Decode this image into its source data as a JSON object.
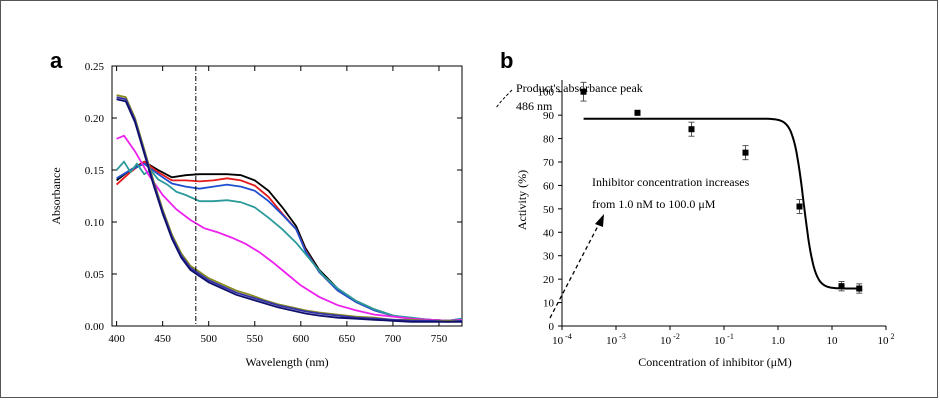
{
  "chart_data": [
    {
      "panel": "a",
      "type": "line",
      "xlabel": "Wavelength (nm)",
      "ylabel": "Absorbance",
      "xlim": [
        395,
        775
      ],
      "ylim": [
        0,
        0.25
      ],
      "xticks": [
        400,
        450,
        500,
        550,
        600,
        650,
        700,
        750
      ],
      "yticks": [
        "0.00",
        "0.05",
        "0.10",
        "0.15",
        "0.20",
        "0.25"
      ],
      "annotations": {
        "peak_line_x": 486,
        "peak_label_line1": "Product's absorbance peak",
        "peak_label_line2": "486 nm",
        "trend_label_line1": "Inhibitor concentration increases",
        "trend_label_line2": "from 1.0 nM to 100.0    μM"
      },
      "series": [
        {
          "color": "#000000",
          "points": [
            [
              400,
              0.14
            ],
            [
              415,
              0.15
            ],
            [
              430,
              0.158
            ],
            [
              445,
              0.15
            ],
            [
              460,
              0.143
            ],
            [
              475,
              0.145
            ],
            [
              490,
              0.146
            ],
            [
              505,
              0.146
            ],
            [
              520,
              0.146
            ],
            [
              535,
              0.145
            ],
            [
              550,
              0.14
            ],
            [
              565,
              0.13
            ],
            [
              580,
              0.114
            ],
            [
              595,
              0.096
            ],
            [
              605,
              0.075
            ],
            [
              620,
              0.054
            ],
            [
              640,
              0.036
            ],
            [
              660,
              0.024
            ],
            [
              680,
              0.016
            ],
            [
              700,
              0.01
            ],
            [
              720,
              0.007
            ],
            [
              740,
              0.006
            ],
            [
              760,
              0.005
            ],
            [
              775,
              0.006
            ]
          ]
        },
        {
          "color": "#e41a1c",
          "points": [
            [
              400,
              0.136
            ],
            [
              415,
              0.148
            ],
            [
              430,
              0.158
            ],
            [
              445,
              0.148
            ],
            [
              460,
              0.14
            ],
            [
              475,
              0.14
            ],
            [
              490,
              0.139
            ],
            [
              505,
              0.14
            ],
            [
              520,
              0.142
            ],
            [
              535,
              0.14
            ],
            [
              550,
              0.135
            ],
            [
              565,
              0.124
            ],
            [
              580,
              0.108
            ],
            [
              595,
              0.093
            ],
            [
              605,
              0.073
            ],
            [
              620,
              0.052
            ],
            [
              640,
              0.034
            ],
            [
              660,
              0.023
            ],
            [
              680,
              0.015
            ],
            [
              700,
              0.01
            ],
            [
              720,
              0.007
            ],
            [
              740,
              0.006
            ],
            [
              760,
              0.005
            ],
            [
              775,
              0.006
            ]
          ]
        },
        {
          "color": "#1f4fd1",
          "points": [
            [
              400,
              0.142
            ],
            [
              415,
              0.15
            ],
            [
              430,
              0.156
            ],
            [
              445,
              0.146
            ],
            [
              460,
              0.137
            ],
            [
              475,
              0.134
            ],
            [
              490,
              0.132
            ],
            [
              505,
              0.134
            ],
            [
              520,
              0.136
            ],
            [
              535,
              0.134
            ],
            [
              550,
              0.13
            ],
            [
              565,
              0.12
            ],
            [
              580,
              0.107
            ],
            [
              595,
              0.093
            ],
            [
              605,
              0.072
            ],
            [
              620,
              0.052
            ],
            [
              640,
              0.034
            ],
            [
              660,
              0.023
            ],
            [
              680,
              0.015
            ],
            [
              700,
              0.01
            ],
            [
              720,
              0.007
            ],
            [
              740,
              0.006
            ],
            [
              760,
              0.005
            ],
            [
              775,
              0.007
            ]
          ]
        },
        {
          "color": "#2a9a9a",
          "points": [
            [
              400,
              0.15
            ],
            [
              408,
              0.158
            ],
            [
              415,
              0.148
            ],
            [
              422,
              0.156
            ],
            [
              430,
              0.146
            ],
            [
              437,
              0.15
            ],
            [
              445,
              0.141
            ],
            [
              455,
              0.136
            ],
            [
              465,
              0.129
            ],
            [
              475,
              0.126
            ],
            [
              490,
              0.12
            ],
            [
              505,
              0.12
            ],
            [
              520,
              0.121
            ],
            [
              535,
              0.119
            ],
            [
              550,
              0.114
            ],
            [
              565,
              0.104
            ],
            [
              580,
              0.093
            ],
            [
              595,
              0.08
            ],
            [
              610,
              0.064
            ],
            [
              625,
              0.048
            ],
            [
              640,
              0.036
            ],
            [
              660,
              0.024
            ],
            [
              680,
              0.016
            ],
            [
              700,
              0.01
            ],
            [
              720,
              0.008
            ],
            [
              740,
              0.006
            ],
            [
              760,
              0.005
            ],
            [
              775,
              0.007
            ]
          ]
        },
        {
          "color": "#ee22ee",
          "points": [
            [
              400,
              0.18
            ],
            [
              408,
              0.183
            ],
            [
              420,
              0.168
            ],
            [
              435,
              0.145
            ],
            [
              450,
              0.126
            ],
            [
              465,
              0.112
            ],
            [
              480,
              0.102
            ],
            [
              495,
              0.094
            ],
            [
              510,
              0.09
            ],
            [
              525,
              0.085
            ],
            [
              540,
              0.079
            ],
            [
              555,
              0.071
            ],
            [
              570,
              0.061
            ],
            [
              585,
              0.05
            ],
            [
              600,
              0.039
            ],
            [
              620,
              0.028
            ],
            [
              640,
              0.02
            ],
            [
              660,
              0.015
            ],
            [
              680,
              0.011
            ],
            [
              700,
              0.009
            ],
            [
              720,
              0.007
            ],
            [
              740,
              0.006
            ],
            [
              760,
              0.005
            ],
            [
              775,
              0.006
            ]
          ]
        },
        {
          "color": "#8a8a20",
          "points": [
            [
              400,
              0.222
            ],
            [
              410,
              0.22
            ],
            [
              420,
              0.2
            ],
            [
              430,
              0.17
            ],
            [
              440,
              0.14
            ],
            [
              450,
              0.112
            ],
            [
              460,
              0.088
            ],
            [
              470,
              0.07
            ],
            [
              480,
              0.058
            ],
            [
              490,
              0.052
            ],
            [
              500,
              0.046
            ],
            [
              515,
              0.04
            ],
            [
              530,
              0.034
            ],
            [
              545,
              0.03
            ],
            [
              560,
              0.025
            ],
            [
              575,
              0.021
            ],
            [
              590,
              0.018
            ],
            [
              605,
              0.015
            ],
            [
              620,
              0.013
            ],
            [
              640,
              0.011
            ],
            [
              660,
              0.009
            ],
            [
              680,
              0.008
            ],
            [
              700,
              0.006
            ],
            [
              720,
              0.006
            ],
            [
              740,
              0.005
            ],
            [
              760,
              0.005
            ],
            [
              775,
              0.005
            ]
          ]
        },
        {
          "color": "#3333aa",
          "points": [
            [
              400,
              0.22
            ],
            [
              410,
              0.218
            ],
            [
              420,
              0.198
            ],
            [
              430,
              0.168
            ],
            [
              440,
              0.138
            ],
            [
              450,
              0.11
            ],
            [
              460,
              0.086
            ],
            [
              470,
              0.068
            ],
            [
              480,
              0.056
            ],
            [
              490,
              0.05
            ],
            [
              500,
              0.044
            ],
            [
              515,
              0.038
            ],
            [
              530,
              0.032
            ],
            [
              545,
              0.028
            ],
            [
              560,
              0.024
            ],
            [
              575,
              0.02
            ],
            [
              590,
              0.017
            ],
            [
              605,
              0.014
            ],
            [
              620,
              0.012
            ],
            [
              640,
              0.01
            ],
            [
              660,
              0.008
            ],
            [
              680,
              0.007
            ],
            [
              700,
              0.006
            ],
            [
              720,
              0.005
            ],
            [
              740,
              0.005
            ],
            [
              760,
              0.004
            ],
            [
              775,
              0.005
            ]
          ]
        },
        {
          "color": "#10106a",
          "points": [
            [
              400,
              0.218
            ],
            [
              410,
              0.216
            ],
            [
              420,
              0.196
            ],
            [
              430,
              0.166
            ],
            [
              440,
              0.136
            ],
            [
              450,
              0.108
            ],
            [
              460,
              0.084
            ],
            [
              470,
              0.066
            ],
            [
              480,
              0.054
            ],
            [
              490,
              0.048
            ],
            [
              500,
              0.042
            ],
            [
              515,
              0.036
            ],
            [
              530,
              0.03
            ],
            [
              545,
              0.026
            ],
            [
              560,
              0.022
            ],
            [
              575,
              0.018
            ],
            [
              590,
              0.015
            ],
            [
              605,
              0.012
            ],
            [
              620,
              0.01
            ],
            [
              640,
              0.008
            ],
            [
              660,
              0.007
            ],
            [
              680,
              0.006
            ],
            [
              700,
              0.005
            ],
            [
              720,
              0.004
            ],
            [
              740,
              0.004
            ],
            [
              760,
              0.004
            ],
            [
              775,
              0.004
            ]
          ]
        }
      ]
    },
    {
      "panel": "b",
      "type": "scatter",
      "xlabel": "Concentration of inhibitor (μM)",
      "ylabel": "Activity (%)",
      "xscale": "log",
      "xlim_log10": [
        -4,
        2
      ],
      "ylim": [
        0,
        105
      ],
      "yticks": [
        0,
        10,
        20,
        30,
        40,
        50,
        60,
        70,
        80,
        90,
        100
      ],
      "xticks": [
        {
          "log": -4,
          "base": "10",
          "exp": "-4"
        },
        {
          "log": -3,
          "base": "10",
          "exp": "-3"
        },
        {
          "log": -2,
          "base": "10",
          "exp": "-2"
        },
        {
          "log": -1,
          "base": "10",
          "exp": "-1"
        },
        {
          "log": 0,
          "label": "1.0"
        },
        {
          "log": 1,
          "label": "10"
        },
        {
          "log": 2,
          "base": "10",
          "exp": "2"
        }
      ],
      "points": [
        {
          "x": 0.00025,
          "y": 100,
          "err": 4
        },
        {
          "x": 0.0025,
          "y": 91,
          "err": 1
        },
        {
          "x": 0.025,
          "y": 84,
          "err": 3
        },
        {
          "x": 0.25,
          "y": 74,
          "err": 3
        },
        {
          "x": 2.5,
          "y": 51,
          "err": 3
        },
        {
          "x": 15,
          "y": 17,
          "err": 2
        },
        {
          "x": 32,
          "y": 16,
          "err": 2
        }
      ],
      "fit": {
        "top": 88.5,
        "bottom": 16,
        "ic50": 3.0,
        "hill": 4.5
      }
    }
  ]
}
